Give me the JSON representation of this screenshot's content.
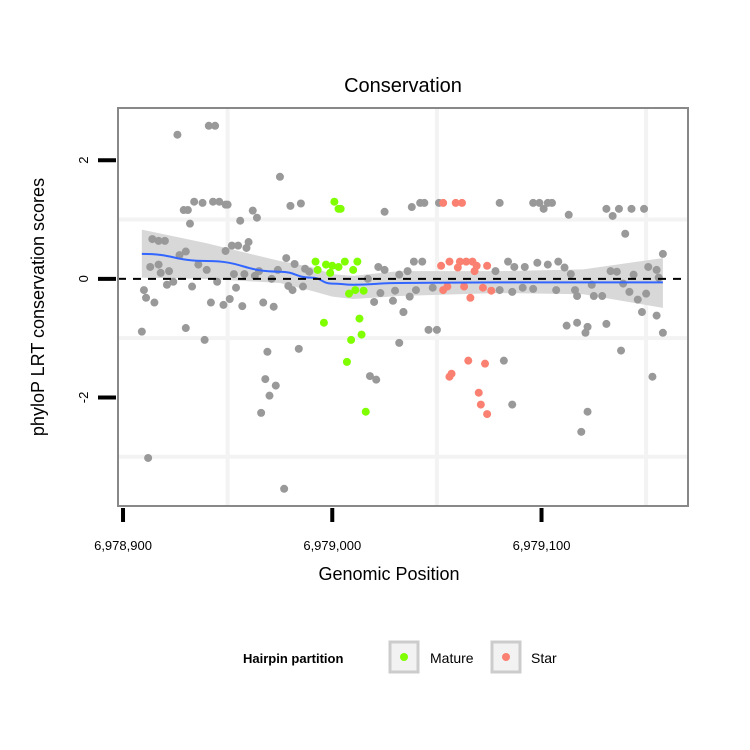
{
  "chart_data": {
    "type": "scatter",
    "title": "Conservation",
    "xlabel": "Genomic Position",
    "ylabel": "phyloP LRT conservation scores",
    "xlim": [
      6978897.6,
      6979170
    ],
    "ylim": [
      -3.83,
      2.88
    ],
    "x_ticks": [
      {
        "value": 6978900,
        "label": "6,978,900"
      },
      {
        "value": 6979000,
        "label": "6,979,000"
      },
      {
        "value": 6979100,
        "label": "6,979,100"
      }
    ],
    "y_ticks": [
      {
        "value": 2,
        "label": "2"
      },
      {
        "value": 0,
        "label": "0"
      },
      {
        "value": -2,
        "label": "-2"
      }
    ],
    "minor_grid_x": [
      6978950,
      6979050,
      6979150
    ],
    "minor_grid_y": [
      1,
      -1,
      -3
    ],
    "reference_line_y": 0,
    "legend": {
      "title": "Hairpin partition",
      "placement": "bottom",
      "entries": [
        {
          "label": "Mature",
          "color": "#7FFF00"
        },
        {
          "label": "Star",
          "color": "#FA8072"
        }
      ]
    },
    "colors": {
      "other": "#999999",
      "Mature": "#7FFF00",
      "Star": "#FA8072",
      "smooth": "#3366FF",
      "band": "#d4d4d4"
    },
    "series": [
      {
        "name": "other",
        "points": [
          [
            6978909,
            -0.89
          ],
          [
            6978912,
            -3.02
          ],
          [
            6978926,
            2.43
          ],
          [
            6978941,
            2.58
          ],
          [
            6978944,
            2.58
          ],
          [
            6978975,
            1.72
          ],
          [
            6978929,
            1.16
          ],
          [
            6978931,
            1.16
          ],
          [
            6978934,
            1.3
          ],
          [
            6978938,
            1.28
          ],
          [
            6978943,
            1.3
          ],
          [
            6978946,
            1.3
          ],
          [
            6978949,
            1.25
          ],
          [
            6978950,
            1.25
          ],
          [
            6978932,
            0.93
          ],
          [
            6978956,
            0.98
          ],
          [
            6978962,
            1.15
          ],
          [
            6978964,
            1.03
          ],
          [
            6978980,
            1.23
          ],
          [
            6978985,
            1.27
          ],
          [
            6979025,
            1.13
          ],
          [
            6978914,
            0.67
          ],
          [
            6978917,
            0.64
          ],
          [
            6978920,
            0.64
          ],
          [
            6978927,
            0.4
          ],
          [
            6978930,
            0.46
          ],
          [
            6978913,
            0.2
          ],
          [
            6978917,
            0.24
          ],
          [
            6978918,
            0.1
          ],
          [
            6978922,
            0.13
          ],
          [
            6978921,
            -0.1
          ],
          [
            6978924,
            -0.05
          ],
          [
            6978910,
            -0.19
          ],
          [
            6978911,
            -0.32
          ],
          [
            6978915,
            -0.4
          ],
          [
            6978933,
            -0.13
          ],
          [
            6978936,
            0.24
          ],
          [
            6978940,
            0.15
          ],
          [
            6978945,
            -0.05
          ],
          [
            6978949,
            0.47
          ],
          [
            6978952,
            0.56
          ],
          [
            6978955,
            0.56
          ],
          [
            6978960,
            0.62
          ],
          [
            6978959,
            0.52
          ],
          [
            6978953,
            0.08
          ],
          [
            6978958,
            0.08
          ],
          [
            6978963,
            0.05
          ],
          [
            6978965,
            0.13
          ],
          [
            6978954,
            -0.15
          ],
          [
            6978942,
            -0.4
          ],
          [
            6978948,
            -0.44
          ],
          [
            6978951,
            -0.34
          ],
          [
            6978957,
            -0.46
          ],
          [
            6978967,
            -0.4
          ],
          [
            6978972,
            -0.47
          ],
          [
            6978971,
            0
          ],
          [
            6978978,
            0.35
          ],
          [
            6978982,
            0.25
          ],
          [
            6978974,
            0.15
          ],
          [
            6978979,
            -0.12
          ],
          [
            6978981,
            -0.19
          ],
          [
            6978986,
            -0.13
          ],
          [
            6978987,
            0.17
          ],
          [
            6978989,
            0.12
          ],
          [
            6978930,
            -0.83
          ],
          [
            6978939,
            -1.03
          ],
          [
            6978984,
            -1.18
          ],
          [
            6978969,
            -1.23
          ],
          [
            6978968,
            -1.69
          ],
          [
            6978973,
            -1.8
          ],
          [
            6978970,
            -1.97
          ],
          [
            6978966,
            -2.26
          ],
          [
            6979018,
            -1.64
          ],
          [
            6979021,
            -1.7
          ],
          [
            6979032,
            -1.08
          ],
          [
            6978977,
            -3.54
          ],
          [
            6979017,
            0
          ],
          [
            6979022,
            0.2
          ],
          [
            6979025,
            0.15
          ],
          [
            6979020,
            -0.39
          ],
          [
            6979023,
            -0.24
          ],
          [
            6979029,
            -0.37
          ],
          [
            6979030,
            -0.2
          ],
          [
            6979034,
            -0.56
          ],
          [
            6979038,
            1.21
          ],
          [
            6979042,
            1.28
          ],
          [
            6979044,
            1.28
          ],
          [
            6979051,
            1.28
          ],
          [
            6979080,
            1.28
          ],
          [
            6979096,
            1.28
          ],
          [
            6979099,
            1.28
          ],
          [
            6979103,
            1.28
          ],
          [
            6979105,
            1.28
          ],
          [
            6979101,
            1.18
          ],
          [
            6979113,
            1.08
          ],
          [
            6979131,
            1.18
          ],
          [
            6979137,
            1.18
          ],
          [
            6979134,
            1.06
          ],
          [
            6979143,
            1.18
          ],
          [
            6979149,
            1.18
          ],
          [
            6979140,
            0.76
          ],
          [
            6979158,
            0.42
          ],
          [
            6979039,
            0.29
          ],
          [
            6979043,
            0.29
          ],
          [
            6979036,
            0.13
          ],
          [
            6979032,
            0.07
          ],
          [
            6979040,
            -0.19
          ],
          [
            6979037,
            -0.3
          ],
          [
            6979048,
            -0.15
          ],
          [
            6979034,
            -0.56
          ],
          [
            6979046,
            -0.86
          ],
          [
            6979050,
            -0.86
          ],
          [
            6979078,
            0.13
          ],
          [
            6979084,
            0.29
          ],
          [
            6979087,
            0.2
          ],
          [
            6979092,
            0.2
          ],
          [
            6979098,
            0.27
          ],
          [
            6979103,
            0.24
          ],
          [
            6979108,
            0.29
          ],
          [
            6979111,
            0.19
          ],
          [
            6979114,
            0.08
          ],
          [
            6979080,
            -0.19
          ],
          [
            6979086,
            -0.22
          ],
          [
            6979091,
            -0.15
          ],
          [
            6979096,
            -0.17
          ],
          [
            6979107,
            -0.19
          ],
          [
            6979116,
            -0.19
          ],
          [
            6979117,
            -0.29
          ],
          [
            6979124,
            -0.1
          ],
          [
            6979125,
            -0.29
          ],
          [
            6979129,
            -0.29
          ],
          [
            6979133,
            0.13
          ],
          [
            6979136,
            0.12
          ],
          [
            6979139,
            -0.08
          ],
          [
            6979144,
            0.07
          ],
          [
            6979142,
            -0.22
          ],
          [
            6979146,
            -0.35
          ],
          [
            6979150,
            -0.25
          ],
          [
            6979151,
            0.2
          ],
          [
            6979155,
            0.15
          ],
          [
            6979156,
            0.02
          ],
          [
            6979148,
            -0.56
          ],
          [
            6979155,
            -0.62
          ],
          [
            6979158,
            -0.91
          ],
          [
            6979112,
            -0.79
          ],
          [
            6979117,
            -0.74
          ],
          [
            6979121,
            -0.91
          ],
          [
            6979122,
            -0.81
          ],
          [
            6979131,
            -0.76
          ],
          [
            6979138,
            -1.21
          ],
          [
            6979082,
            -1.38
          ],
          [
            6979086,
            -2.12
          ],
          [
            6979122,
            -2.24
          ],
          [
            6979119,
            -2.58
          ],
          [
            6979153,
            -1.65
          ]
        ]
      },
      {
        "name": "Mature",
        "points": [
          [
            6979001,
            1.3
          ],
          [
            6979003,
            1.18
          ],
          [
            6979004,
            1.18
          ],
          [
            6978992,
            0.29
          ],
          [
            6978993,
            0.15
          ],
          [
            6978997,
            0.24
          ],
          [
            6979000,
            0.22
          ],
          [
            6979003,
            0.2
          ],
          [
            6979006,
            0.29
          ],
          [
            6979012,
            0.29
          ],
          [
            6979010,
            0.15
          ],
          [
            6978999,
            0.1
          ],
          [
            6979008,
            -0.25
          ],
          [
            6979011,
            -0.19
          ],
          [
            6979015,
            -0.2
          ],
          [
            6978996,
            -0.74
          ],
          [
            6979013,
            -0.67
          ],
          [
            6979014,
            -0.94
          ],
          [
            6979009,
            -1.03
          ],
          [
            6979007,
            -1.4
          ],
          [
            6979016,
            -2.24
          ]
        ]
      },
      {
        "name": "Star",
        "points": [
          [
            6979053,
            1.28
          ],
          [
            6979059,
            1.28
          ],
          [
            6979062,
            1.28
          ],
          [
            6979052,
            0.22
          ],
          [
            6979056,
            0.29
          ],
          [
            6979061,
            0.29
          ],
          [
            6979064,
            0.29
          ],
          [
            6979067,
            0.29
          ],
          [
            6979069,
            0.22
          ],
          [
            6979074,
            0.22
          ],
          [
            6979060,
            0.19
          ],
          [
            6979068,
            0.13
          ],
          [
            6979053,
            -0.19
          ],
          [
            6979055,
            -0.13
          ],
          [
            6979063,
            -0.13
          ],
          [
            6979072,
            -0.15
          ],
          [
            6979076,
            -0.2
          ],
          [
            6979066,
            -0.32
          ],
          [
            6979065,
            -1.38
          ],
          [
            6979073,
            -1.43
          ],
          [
            6979057,
            -1.6
          ],
          [
            6979056,
            -1.65
          ],
          [
            6979070,
            -1.92
          ],
          [
            6979071,
            -2.12
          ],
          [
            6979074,
            -2.28
          ]
        ]
      }
    ],
    "smooth": {
      "x": [
        6978909,
        6978940,
        6978975,
        6978990,
        6979000,
        6979010,
        6979032,
        6979080,
        6979120,
        6979158
      ],
      "y": [
        0.42,
        0.3,
        0.12,
        0.02,
        -0.08,
        -0.1,
        -0.07,
        -0.06,
        -0.06,
        -0.06
      ],
      "lo": [
        0.02,
        0.0,
        -0.07,
        -0.2,
        -0.3,
        -0.34,
        -0.29,
        -0.24,
        -0.26,
        -0.49
      ],
      "hi": [
        0.83,
        0.6,
        0.3,
        0.2,
        0.08,
        0.05,
        0.13,
        0.13,
        0.16,
        0.35
      ]
    }
  }
}
